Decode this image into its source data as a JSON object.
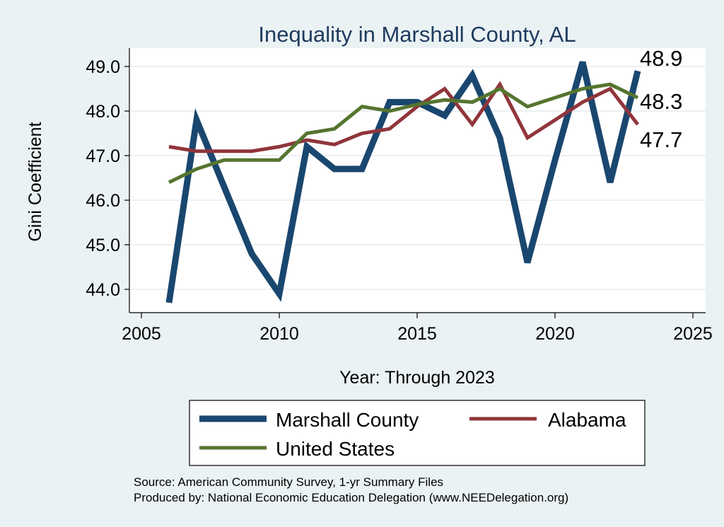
{
  "chart_data": {
    "type": "line",
    "title": "Inequality in Marshall County, AL",
    "xlabel": "Year: Through 2023",
    "ylabel": "Gini Coefficient",
    "xlim": [
      2005,
      2025
    ],
    "ylim": [
      43.4,
      49.3
    ],
    "xticks": [
      2005,
      2010,
      2015,
      2020,
      2025
    ],
    "yticks": [
      44.0,
      45.0,
      46.0,
      47.0,
      48.0,
      49.0
    ],
    "ytick_labels": [
      "44.0",
      "45.0",
      "46.0",
      "47.0",
      "48.0",
      "49.0"
    ],
    "x": [
      2006,
      2007,
      2008,
      2009,
      2010,
      2011,
      2012,
      2013,
      2014,
      2015,
      2016,
      2017,
      2018,
      2019,
      2020,
      2021,
      2022,
      2023
    ],
    "series": [
      {
        "name": "Marshall County",
        "color": "#1a476f",
        "values": [
          43.7,
          47.8,
          46.3,
          44.8,
          43.9,
          47.2,
          46.7,
          46.7,
          48.2,
          48.2,
          47.9,
          48.8,
          47.4,
          44.6,
          46.9,
          49.1,
          46.4,
          48.9
        ]
      },
      {
        "name": "Alabama",
        "color": "#90353b",
        "values": [
          47.2,
          47.1,
          47.1,
          47.1,
          47.2,
          47.35,
          47.25,
          47.5,
          47.6,
          48.1,
          48.5,
          47.7,
          48.6,
          47.4,
          47.8,
          48.2,
          48.5,
          47.7
        ]
      },
      {
        "name": "United States",
        "color": "#55752f",
        "values": [
          46.4,
          46.7,
          46.9,
          46.9,
          46.9,
          47.5,
          47.6,
          48.1,
          48.0,
          48.15,
          48.25,
          48.2,
          48.5,
          48.1,
          48.3,
          48.5,
          48.6,
          48.3
        ]
      }
    ],
    "end_labels": [
      "48.9",
      "48.3",
      "47.7"
    ],
    "grid": true,
    "legend": "bottom"
  },
  "footer": {
    "source": "Source: American Community Survey, 1-yr Summary Files",
    "produced": "Produced by: National Economic Education Delegation (www.NEEDelegation.org)"
  }
}
